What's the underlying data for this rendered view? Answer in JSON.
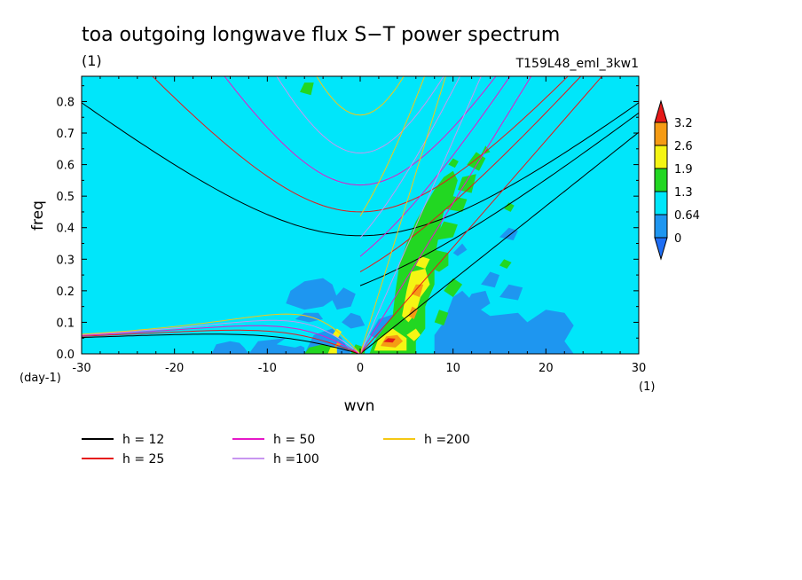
{
  "chart_data": {
    "type": "heatmap",
    "title": "toa outgoing longwave flux S−T power spectrum",
    "units_label": "(1)",
    "run_label": "T159L48_eml_3kw1",
    "xlabel": "wvn",
    "ylabel": "freq",
    "x_unit": "(1)",
    "y_unit": "(day-1)",
    "xlim": [
      -30,
      30
    ],
    "ylim": [
      0,
      0.88
    ],
    "xticks": [
      -30,
      -20,
      -10,
      0,
      10,
      20,
      30
    ],
    "yticks": [
      0.0,
      0.1,
      0.2,
      0.3,
      0.4,
      0.5,
      0.6,
      0.7,
      0.8
    ],
    "colorbar": {
      "levels": [
        "0",
        "0.64",
        "1.3",
        "1.9",
        "2.6",
        "3.2"
      ],
      "colors": [
        "#1e6ef5",
        "#1e96f0",
        "#00e6fa",
        "#22d722",
        "#f5f514",
        "#f59b14",
        "#e61919"
      ]
    },
    "legend": [
      {
        "label": "h = 12",
        "h": 12,
        "color": "#000000"
      },
      {
        "label": "h = 25",
        "h": 25,
        "color": "#e61919"
      },
      {
        "label": "h = 50",
        "h": 50,
        "color": "#e618c8"
      },
      {
        "label": "h =100",
        "h": 100,
        "color": "#c896f0"
      },
      {
        "label": "h =200",
        "h": 200,
        "color": "#f5c814"
      }
    ],
    "dispersion_curves": {
      "families": [
        "kelvin",
        "mrg",
        "n1_inertia_gravity",
        "equatorial_rossby_n1"
      ],
      "equivalent_depths": [
        12,
        25,
        50,
        100,
        200
      ]
    },
    "contour_regions": [
      {
        "level": "0.64-1.3",
        "color": "#1e96f0",
        "area": "blue patches wvn -16 to 23, freq 0 to 0.27"
      },
      {
        "level": "1.3-1.9",
        "color": "#22d722",
        "area": "along Kelvin wave band wvn 1 to 14, freq 0 to 0.6"
      },
      {
        "level": "1.9-2.6",
        "color": "#f5f514",
        "area": "wvn 3 to 8, freq 0.02 to 0.28"
      },
      {
        "level": "2.6-3.2",
        "color": "#f59b14",
        "area": "wvn 2 to 5, freq 0.03 to 0.06"
      },
      {
        "level": ">3.2",
        "color": "#e61919",
        "area": "wvn 3, freq 0.04"
      }
    ]
  }
}
